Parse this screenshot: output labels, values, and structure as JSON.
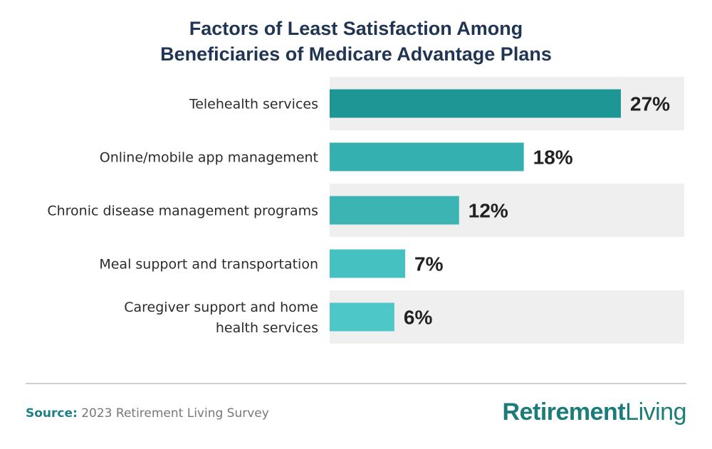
{
  "chart_data": {
    "type": "bar",
    "orientation": "horizontal",
    "title_lines": [
      "Factors of Least Satisfaction Among",
      "Beneficiaries of Medicare Advantage Plans"
    ],
    "categories": [
      [
        "Telehealth services"
      ],
      [
        "Online/mobile app management"
      ],
      [
        "Chronic disease management programs"
      ],
      [
        "Meal support and transportation"
      ],
      [
        "Caregiver support and home",
        "health services"
      ]
    ],
    "values": [
      27,
      18,
      12,
      7,
      6
    ],
    "value_labels": [
      "27%",
      "18%",
      "12%",
      "7%",
      "6%"
    ],
    "unit": "%",
    "bar_colors": [
      "#1e9696",
      "#35b0b0",
      "#3db4b4",
      "#45c1c1",
      "#4dc7c7"
    ],
    "band_color": "#efefef",
    "grid": false,
    "legend": "none"
  },
  "footer": {
    "source_label": "Source:",
    "source_text": "2023 Retirement Living Survey",
    "logo_bold": "Retirement",
    "logo_light": "Living"
  }
}
